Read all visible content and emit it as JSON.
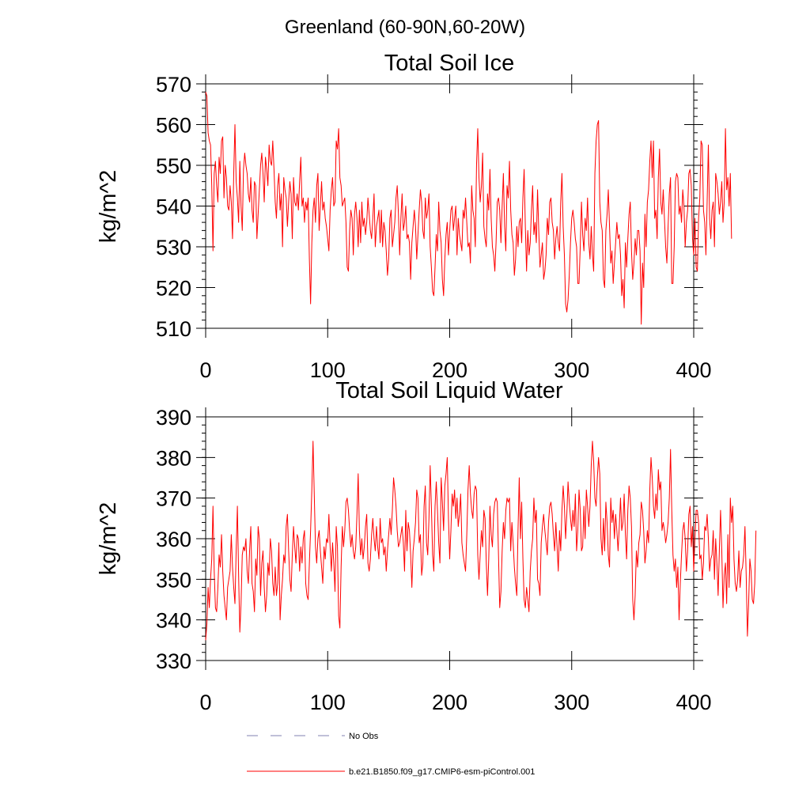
{
  "figure": {
    "title": "Greenland (60-90N,60-20W)"
  },
  "colors": {
    "model": "#ff0000",
    "obs": "#8080b0",
    "axis": "#000000"
  },
  "legend": {
    "obs_label": "No Obs",
    "model_label": "b.e21.B1850.f09_g17.CMIP6-esm-piControl.001"
  },
  "chart_data": [
    {
      "type": "line",
      "title": "Total Soil Ice",
      "xlabel": "",
      "ylabel": "kg/m^2",
      "xlim": [
        0,
        400
      ],
      "ylim": [
        510,
        570
      ],
      "xticks": [
        0,
        100,
        200,
        300,
        400
      ],
      "yticks": [
        510,
        520,
        530,
        540,
        550,
        560,
        570
      ],
      "series": [
        {
          "name": "b.e21.B1850.f09_g17.CMIP6-esm-piControl.001",
          "x_start": 0,
          "x_step": 1,
          "values": [
            568,
            567,
            558,
            556,
            555,
            545,
            529,
            548,
            551,
            545,
            541,
            552,
            548,
            556,
            557,
            542,
            550,
            547,
            540,
            539,
            545,
            541,
            532,
            548,
            560,
            546,
            542,
            536,
            551,
            540,
            534,
            549,
            553,
            550,
            548,
            543,
            541,
            547,
            539,
            536,
            546,
            545,
            532,
            538,
            544,
            550,
            553,
            548,
            541,
            552,
            549,
            545,
            555,
            551,
            550,
            556,
            549,
            541,
            537,
            545,
            548,
            539,
            543,
            530,
            547,
            544,
            542,
            535,
            541,
            546,
            543,
            532,
            547,
            541,
            540,
            543,
            539,
            546,
            552,
            540,
            542,
            536,
            541,
            539,
            542,
            527,
            516,
            531,
            539,
            542,
            536,
            545,
            548,
            534,
            540,
            546,
            539,
            541,
            537,
            535,
            532,
            529,
            539,
            544,
            547,
            540,
            541,
            556,
            554,
            559,
            547,
            545,
            540,
            541,
            542,
            536,
            525,
            524,
            534,
            539,
            537,
            528,
            538,
            541,
            537,
            530,
            539,
            531,
            541,
            535,
            537,
            533,
            536,
            542,
            538,
            534,
            532,
            537,
            543,
            530,
            535,
            537,
            539,
            531,
            539,
            530,
            536,
            534,
            529,
            523,
            527,
            537,
            539,
            530,
            533,
            536,
            542,
            545,
            538,
            528,
            537,
            543,
            534,
            536,
            540,
            532,
            533,
            531,
            522,
            531,
            535,
            539,
            535,
            527,
            533,
            539,
            544,
            541,
            534,
            532,
            542,
            537,
            539,
            543,
            530,
            525,
            519,
            518,
            525,
            533,
            529,
            541,
            534,
            531,
            522,
            518,
            527,
            533,
            536,
            528,
            534,
            539,
            540,
            534,
            537,
            540,
            528,
            537,
            533,
            531,
            529,
            539,
            537,
            542,
            536,
            530,
            531,
            526,
            545,
            539,
            537,
            530,
            550,
            559,
            547,
            541,
            545,
            553,
            535,
            532,
            530,
            543,
            539,
            549,
            537,
            530,
            528,
            524,
            531,
            541,
            542,
            539,
            531,
            540,
            548,
            535,
            529,
            545,
            542,
            551,
            539,
            533,
            531,
            523,
            527,
            535,
            530,
            536,
            537,
            531,
            542,
            549,
            535,
            524,
            534,
            528,
            531,
            539,
            545,
            533,
            536,
            531,
            544,
            534,
            525,
            528,
            531,
            522,
            524,
            528,
            537,
            533,
            541,
            542,
            536,
            534,
            527,
            532,
            535,
            531,
            529,
            541,
            548,
            535,
            528,
            516,
            514,
            517,
            523,
            531,
            537,
            539,
            536,
            532,
            530,
            521,
            521,
            530,
            541,
            533,
            529,
            537,
            534,
            542,
            531,
            527,
            535,
            528,
            524,
            548,
            556,
            560,
            561,
            541,
            536,
            534,
            522,
            520,
            534,
            538,
            544,
            535,
            526,
            529,
            521,
            526,
            531,
            536,
            532,
            533,
            528,
            518,
            522,
            515,
            531,
            525,
            532,
            538,
            541,
            529,
            522,
            526,
            532,
            528,
            534,
            534,
            529,
            511,
            526,
            520,
            538,
            530,
            541,
            544,
            551,
            556,
            547,
            556,
            537,
            539,
            532,
            547,
            554,
            541,
            538,
            544,
            537,
            530,
            526,
            535,
            543,
            547,
            521,
            521,
            530,
            546,
            548,
            547,
            538,
            540,
            536,
            544,
            540,
            530,
            536,
            539,
            548,
            549,
            545,
            532,
            528,
            537,
            525,
            524,
            537,
            542,
            556,
            555,
            539,
            536,
            528,
            541,
            555,
            537,
            532,
            539,
            541,
            530,
            548,
            546,
            543,
            538,
            541,
            546,
            536,
            541,
            559,
            544,
            547,
            540,
            548,
            532
          ]
        }
      ]
    },
    {
      "type": "line",
      "title": "Total Soil Liquid Water",
      "xlabel": "",
      "ylabel": "kg/m^2",
      "xlim": [
        0,
        400
      ],
      "ylim": [
        330,
        390
      ],
      "xticks": [
        0,
        100,
        200,
        300,
        400
      ],
      "yticks": [
        330,
        340,
        350,
        360,
        370,
        380,
        390
      ],
      "series": [
        {
          "name": "b.e21.B1850.f09_g17.CMIP6-esm-piControl.001",
          "x_start": 0,
          "x_step": 1,
          "values": [
            335,
            339,
            348,
            343,
            350,
            355,
            368,
            352,
            343,
            342,
            348,
            356,
            353,
            361,
            352,
            346,
            343,
            340,
            348,
            350,
            352,
            361,
            353,
            348,
            344,
            357,
            368,
            351,
            337,
            344,
            356,
            358,
            357,
            360,
            352,
            349,
            357,
            363,
            349,
            347,
            342,
            355,
            351,
            363,
            360,
            346,
            354,
            357,
            348,
            342,
            346,
            354,
            351,
            360,
            357,
            349,
            346,
            353,
            346,
            349,
            359,
            340,
            346,
            350,
            356,
            354,
            363,
            366,
            357,
            350,
            347,
            356,
            363,
            358,
            354,
            361,
            360,
            352,
            358,
            354,
            360,
            362,
            349,
            346,
            345,
            354,
            362,
            372,
            384,
            371,
            358,
            354,
            360,
            362,
            357,
            353,
            349,
            358,
            355,
            360,
            359,
            366,
            358,
            352,
            359,
            354,
            347,
            363,
            358,
            341,
            338,
            353,
            363,
            358,
            362,
            369,
            370,
            367,
            362,
            358,
            361,
            357,
            355,
            358,
            366,
            376,
            362,
            356,
            360,
            355,
            358,
            363,
            366,
            354,
            352,
            355,
            361,
            365,
            360,
            357,
            363,
            358,
            355,
            365,
            359,
            360,
            356,
            358,
            352,
            357,
            361,
            365,
            361,
            367,
            375,
            372,
            368,
            362,
            358,
            359,
            361,
            363,
            359,
            352,
            367,
            357,
            364,
            362,
            356,
            348,
            357,
            360,
            364,
            372,
            370,
            359,
            361,
            351,
            354,
            368,
            373,
            359,
            356,
            365,
            378,
            368,
            356,
            352,
            368,
            374,
            367,
            359,
            354,
            375,
            369,
            362,
            373,
            376,
            380,
            365,
            355,
            362,
            371,
            368,
            372,
            365,
            370,
            363,
            366,
            371,
            359,
            356,
            354,
            352,
            361,
            372,
            378,
            371,
            367,
            365,
            371,
            373,
            372,
            356,
            350,
            356,
            362,
            358,
            367,
            365,
            354,
            346,
            355,
            368,
            361,
            358,
            366,
            369,
            370,
            369,
            356,
            343,
            347,
            357,
            364,
            360,
            367,
            370,
            369,
            370,
            357,
            364,
            359,
            353,
            349,
            346,
            362,
            375,
            360,
            369,
            355,
            345,
            343,
            348,
            345,
            342,
            352,
            357,
            360,
            370,
            364,
            367,
            350,
            349,
            346,
            359,
            363,
            366,
            362,
            359,
            356,
            364,
            368,
            369,
            366,
            361,
            357,
            364,
            358,
            352,
            362,
            357,
            367,
            373,
            368,
            360,
            366,
            374,
            369,
            365,
            362,
            367,
            363,
            371,
            357,
            362,
            372,
            367,
            357,
            358,
            368,
            360,
            372,
            368,
            363,
            368,
            378,
            384,
            379,
            370,
            368,
            375,
            380,
            376,
            360,
            356,
            365,
            357,
            369,
            364,
            356,
            353,
            370,
            364,
            367,
            360,
            366,
            362,
            357,
            363,
            370,
            362,
            364,
            371,
            361,
            355,
            367,
            373,
            370,
            363,
            345,
            340,
            346,
            357,
            353,
            359,
            361,
            369,
            367,
            362,
            354,
            357,
            362,
            359,
            372,
            380,
            375,
            368,
            365,
            371,
            367,
            377,
            372,
            374,
            362,
            364,
            362,
            359,
            361,
            364,
            370,
            382,
            367,
            356,
            352,
            355,
            348,
            353,
            340,
            349,
            356,
            362,
            364,
            360,
            352,
            357,
            366,
            368,
            358,
            363,
            352,
            360,
            367,
            367,
            364,
            355,
            356,
            350,
            354,
            363,
            362,
            366,
            360,
            352,
            355,
            356,
            362,
            350,
            360,
            354,
            346,
            357,
            367,
            357,
            343,
            351,
            354,
            344,
            361,
            348,
            370,
            364,
            368,
            355,
            349,
            347,
            350,
            357,
            348,
            352,
            353,
            356,
            363,
            351,
            336,
            344,
            355,
            352,
            345,
            344,
            349,
            362
          ]
        }
      ]
    }
  ]
}
